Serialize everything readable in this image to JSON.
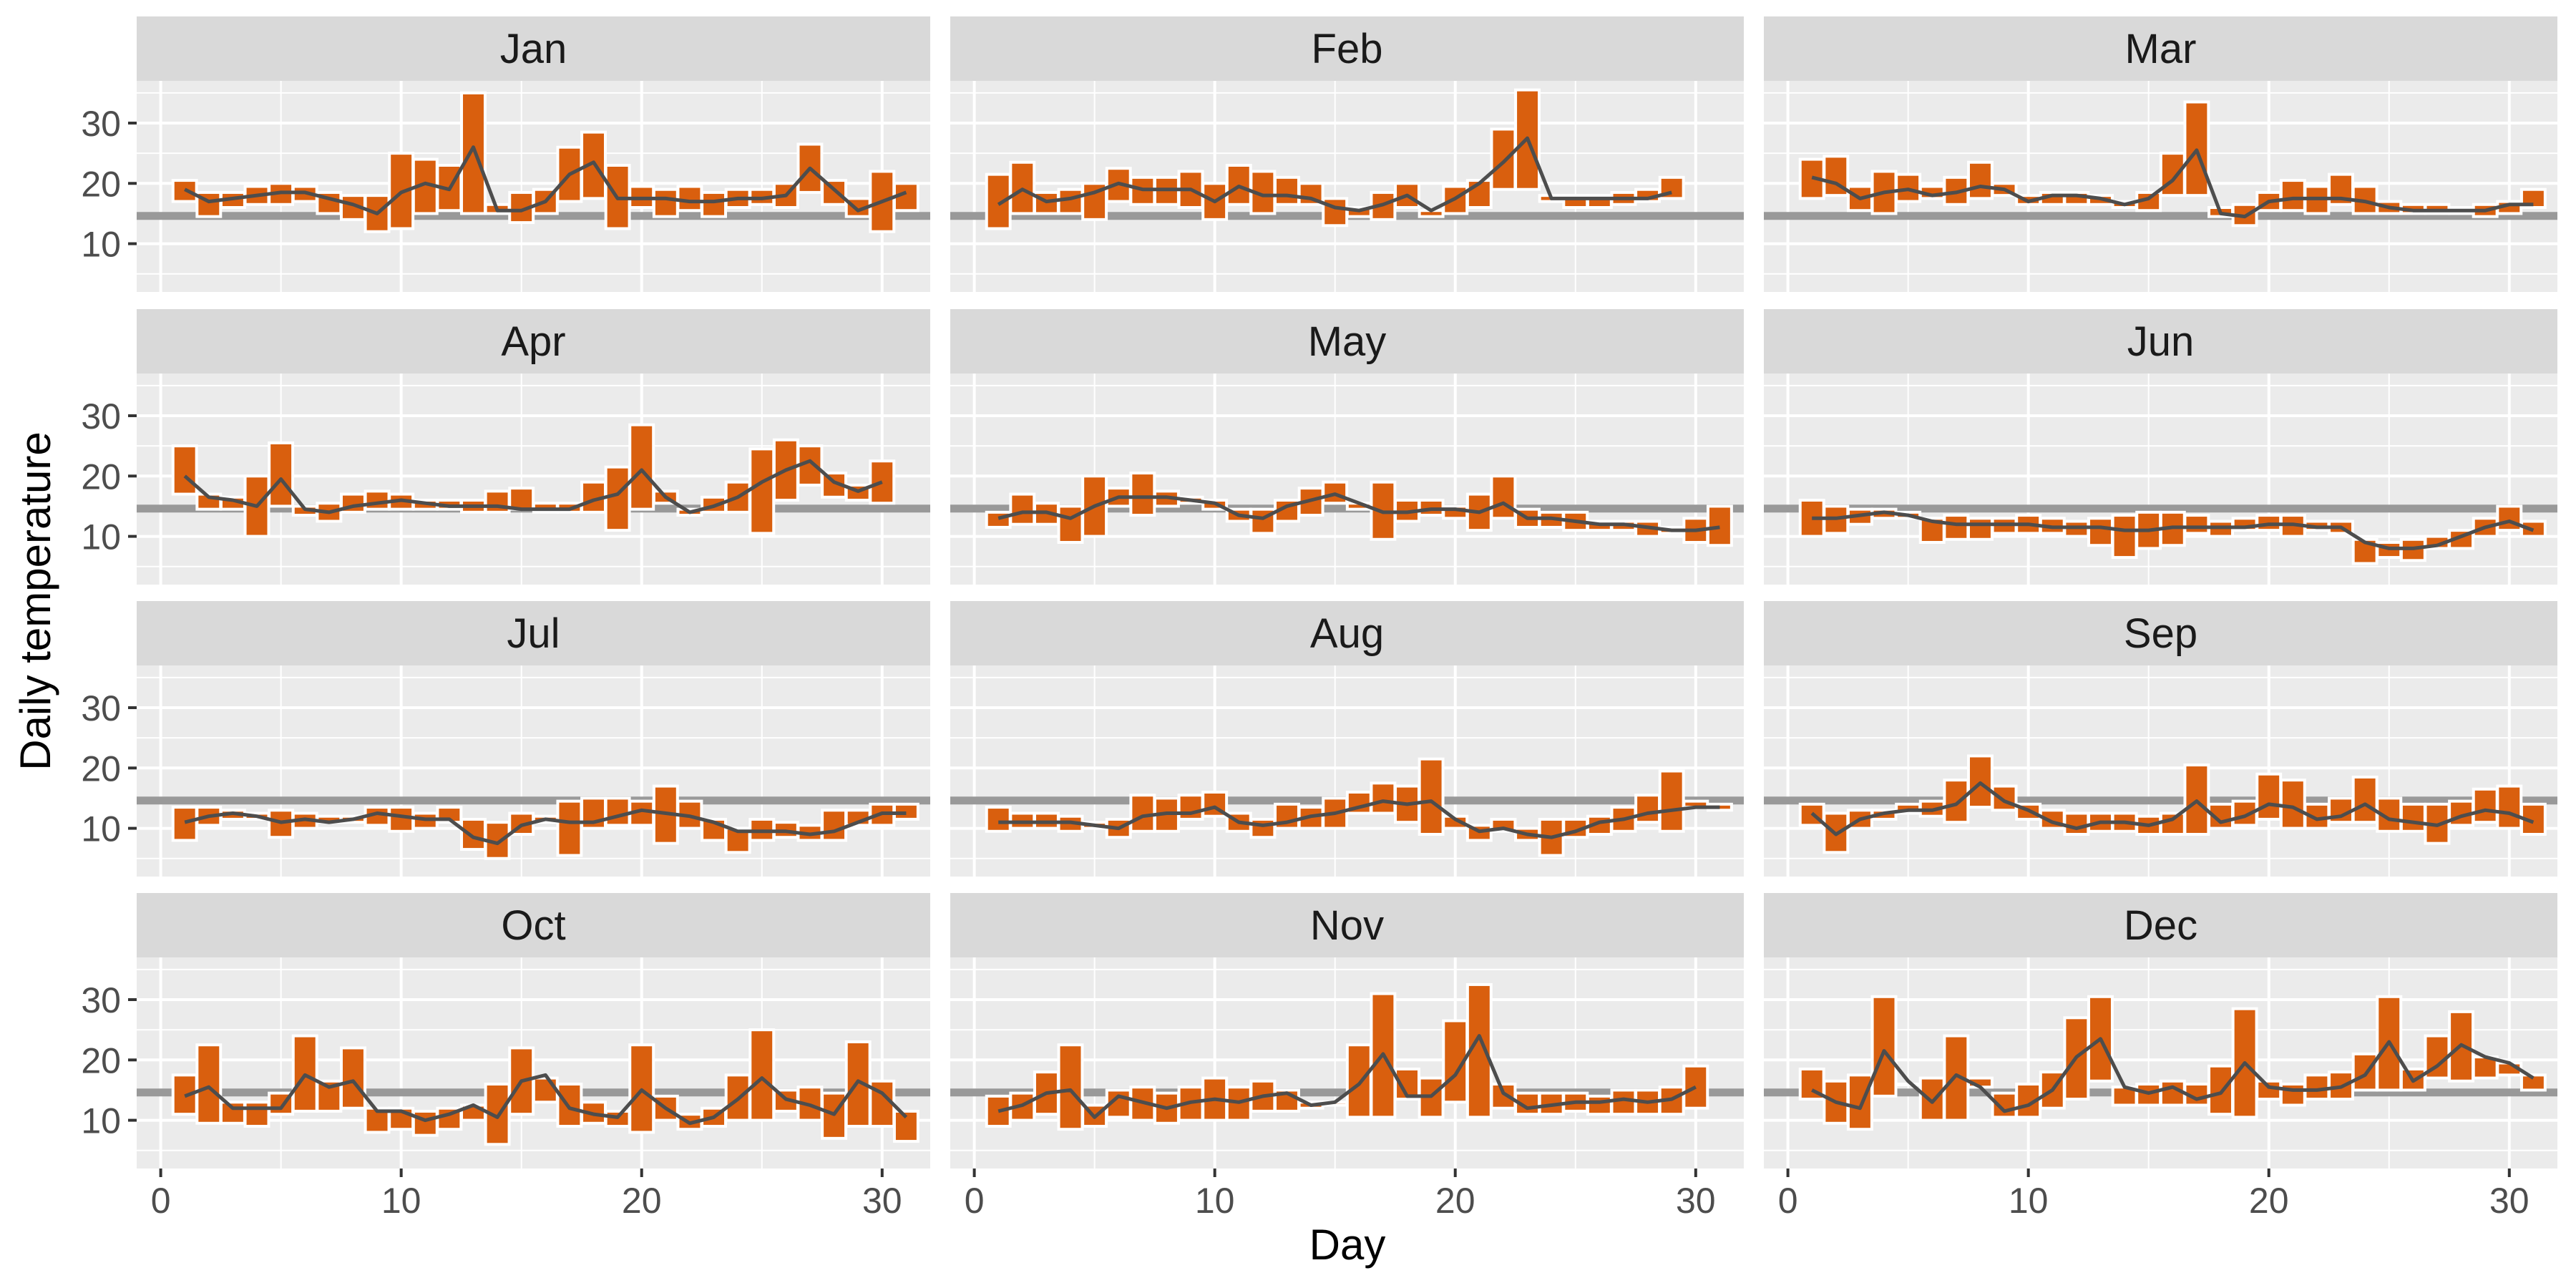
{
  "chart_data": {
    "type": "bar",
    "subtype": "floating-bar-with-line, faceted small multiples",
    "xlabel": "Day",
    "ylabel": "Daily temperature",
    "xlim": [
      -1,
      32
    ],
    "ylim": [
      2,
      37
    ],
    "x_ticks": [
      0,
      10,
      20,
      30
    ],
    "y_ticks": [
      10,
      20,
      30
    ],
    "grid": true,
    "reference_line_value": 14.6,
    "colors": {
      "bar": "#D95F0E",
      "bar_outline": "#ffffff",
      "line": "#4D4D4D",
      "reference_line": "#999999",
      "panel_background": "#EBEBEB",
      "strip_background": "#D9D9D9",
      "grid": "#ffffff"
    },
    "panels": [
      {
        "label": "Jan",
        "line": [
          19,
          17,
          17.5,
          18,
          18.5,
          18.5,
          17.5,
          16.5,
          15,
          18.5,
          20,
          19,
          26,
          15.5,
          15.5,
          17,
          21.5,
          23.5,
          17.5,
          17.5,
          17.5,
          17,
          17,
          17.5,
          17.5,
          18,
          22.5,
          19,
          15.5,
          17,
          18.5
        ],
        "low": [
          17,
          14.5,
          16,
          16.5,
          16.5,
          17,
          15,
          14,
          12,
          12.5,
          15,
          15.5,
          15,
          15,
          13.5,
          15,
          17,
          17.5,
          12.5,
          16,
          14.5,
          15.5,
          14.5,
          16,
          16.5,
          16,
          18.5,
          16.5,
          14.5,
          12,
          15.5
        ],
        "high": [
          20.5,
          18.5,
          18.5,
          19.5,
          20,
          19.5,
          18.5,
          18,
          18,
          25,
          24,
          23,
          35,
          16.5,
          18.5,
          19,
          26,
          28.5,
          23,
          19.5,
          19,
          19.5,
          18.5,
          19,
          19,
          20,
          26.5,
          20.5,
          17.5,
          22,
          20
        ]
      },
      {
        "label": "Feb",
        "line": [
          16.5,
          19,
          17,
          17.5,
          18.5,
          20,
          19,
          19,
          19,
          17,
          19.5,
          18,
          18,
          17.5,
          16,
          15.5,
          16.5,
          18,
          15.5,
          17.5,
          20,
          23.5,
          27.5,
          17.5,
          17.5,
          17.5,
          17.5,
          17.5,
          18.5
        ],
        "low": [
          12.5,
          15,
          15,
          15,
          14,
          17,
          16.5,
          16.5,
          16,
          14,
          16.5,
          15,
          16.5,
          16.5,
          13,
          14.5,
          14,
          16,
          14.5,
          15,
          16,
          19,
          19,
          17,
          16,
          16,
          16.5,
          17,
          17.5
        ],
        "high": [
          21.5,
          23.5,
          18.5,
          19,
          20,
          22.5,
          21,
          21,
          22,
          20,
          23,
          22,
          21,
          20,
          17.5,
          16,
          18.5,
          20,
          15.5,
          19.5,
          20.5,
          29,
          35.5,
          18,
          18,
          18,
          18.5,
          19,
          21
        ]
      },
      {
        "label": "Mar",
        "line": [
          21,
          20,
          17.5,
          18.5,
          19,
          18,
          18.5,
          19.5,
          19,
          17,
          18,
          18,
          17.5,
          16.5,
          17.5,
          20.5,
          25.5,
          15,
          14.5,
          17,
          17.5,
          17.5,
          17.5,
          17,
          16,
          15.5,
          15.5,
          15.5,
          15.5,
          16.5,
          16.5
        ],
        "low": [
          17.5,
          18,
          15.5,
          15,
          17,
          17.5,
          16.5,
          17.5,
          18,
          16.5,
          16.5,
          16.5,
          16.5,
          16,
          15.5,
          18,
          18,
          14.5,
          13,
          15.5,
          15.5,
          15,
          16.5,
          15,
          15,
          15,
          15,
          15,
          14.5,
          15,
          16
        ],
        "high": [
          24,
          24.5,
          19.5,
          22,
          21.5,
          19.5,
          21,
          23.5,
          20,
          18,
          18.5,
          18.5,
          18,
          17,
          18.5,
          25,
          33.5,
          16,
          16.5,
          18.5,
          20.5,
          19.5,
          21.5,
          19.5,
          17,
          16.5,
          16.5,
          16,
          16.5,
          17,
          19
        ]
      },
      {
        "label": "Apr",
        "line": [
          20,
          16.5,
          16,
          15,
          19.5,
          14.5,
          14,
          15,
          15.5,
          16,
          15.5,
          15,
          15,
          15,
          14.5,
          14.5,
          14.5,
          16,
          17,
          21,
          16.5,
          14,
          15,
          16.5,
          19,
          21,
          22.5,
          19,
          17.5,
          19
        ],
        "low": [
          17,
          14.5,
          14.5,
          10,
          15,
          13.5,
          12.5,
          14,
          14.5,
          14.5,
          14.5,
          14.5,
          14,
          14,
          14.5,
          14,
          14,
          14,
          11,
          14.5,
          15.5,
          13.5,
          14,
          14,
          10.5,
          16,
          18.5,
          16.5,
          16,
          15.5
        ],
        "high": [
          25,
          17,
          16.5,
          20,
          25.5,
          15,
          15.5,
          17,
          17.5,
          17,
          16,
          16,
          16,
          17.5,
          18,
          15.5,
          15.5,
          19,
          21.5,
          28.5,
          17.5,
          14.5,
          16.5,
          19,
          24.5,
          26,
          25,
          20.5,
          18.5,
          22.5
        ]
      },
      {
        "label": "May",
        "line": [
          13,
          14,
          14,
          13,
          15,
          16.5,
          16.5,
          16.5,
          16,
          15.5,
          13.5,
          13,
          15,
          16,
          17,
          15.5,
          14,
          14,
          14.5,
          14.5,
          14,
          15.5,
          13,
          13,
          12.5,
          12,
          12,
          11.5,
          11,
          11,
          11.5
        ],
        "low": [
          11.5,
          12,
          12,
          9,
          10,
          15,
          13.5,
          15,
          15.5,
          14.5,
          12.5,
          10.5,
          12.5,
          13.5,
          15.5,
          14.5,
          9.5,
          12.5,
          13.5,
          13,
          11,
          13,
          11.5,
          11.5,
          11,
          11,
          11,
          10,
          10.5,
          9,
          8.5
        ],
        "high": [
          14,
          17,
          15.5,
          15,
          20,
          18,
          20.5,
          17.5,
          16.5,
          16,
          14.5,
          14.5,
          16,
          18,
          19,
          15.5,
          19,
          16,
          16,
          15,
          17,
          20,
          14.5,
          14,
          14,
          12.5,
          12.5,
          12.5,
          11.5,
          13,
          15
        ]
      },
      {
        "label": "Jun",
        "line": [
          13,
          13,
          13.5,
          14,
          13.5,
          12.5,
          12,
          12,
          12,
          12,
          11.5,
          11.5,
          11.5,
          11,
          11,
          11.5,
          11.5,
          11.5,
          11.5,
          12,
          12,
          11.5,
          11.5,
          9,
          8,
          8,
          8.5,
          10,
          11.5,
          12.5,
          11
        ],
        "low": [
          10,
          10.5,
          12,
          13,
          13,
          9,
          9.5,
          9.5,
          10.5,
          10.5,
          10.5,
          10,
          8.5,
          6.5,
          8,
          8.5,
          10.5,
          10,
          11,
          11,
          10,
          11,
          10.5,
          5.5,
          6.5,
          6,
          8,
          8,
          10,
          11,
          10
        ],
        "high": [
          16,
          15,
          14.5,
          14.5,
          14,
          13,
          13.5,
          13,
          13,
          13.5,
          13,
          12.5,
          13,
          13.5,
          14,
          14,
          13.5,
          12.5,
          13,
          13.5,
          13.5,
          12.5,
          12.5,
          9.5,
          9,
          9.5,
          10,
          11,
          13,
          15,
          12.5
        ]
      },
      {
        "label": "Jul",
        "line": [
          11,
          12,
          12.5,
          12,
          11,
          11.5,
          11,
          11.5,
          12.5,
          12,
          11.5,
          11.5,
          8.5,
          7.5,
          10.5,
          11.5,
          11,
          11,
          12,
          13,
          12.5,
          12,
          11,
          9.5,
          9.5,
          9.5,
          9,
          9.5,
          11,
          12.5,
          12.5
        ],
        "low": [
          8,
          10.5,
          11.5,
          11.5,
          8.5,
          10,
          11,
          11,
          10.5,
          9.5,
          10,
          11,
          6.5,
          5,
          9,
          11,
          5.5,
          10,
          10.5,
          10.5,
          7.5,
          10,
          8,
          6,
          8,
          8.5,
          8,
          8,
          10.5,
          10.5,
          11.5
        ],
        "high": [
          13.5,
          13.5,
          13,
          12.5,
          13,
          12.5,
          12,
          12,
          13.5,
          13.5,
          12.5,
          13.5,
          11.5,
          11,
          12.5,
          12,
          14.5,
          15,
          15,
          14.5,
          17,
          14.5,
          11.5,
          10,
          11.5,
          11,
          10.5,
          13,
          13,
          14,
          14
        ]
      },
      {
        "label": "Aug",
        "line": [
          11,
          11,
          11,
          11,
          10.5,
          10,
          12,
          12.5,
          12.5,
          13.5,
          11,
          10.5,
          11,
          12,
          12.5,
          13.5,
          14.5,
          14,
          14.5,
          11.5,
          9.5,
          10,
          9,
          8.5,
          9.5,
          11,
          11.5,
          12.5,
          13,
          13.5,
          13.5
        ],
        "low": [
          9.5,
          10,
          10,
          9.5,
          10,
          8.5,
          9.5,
          9.5,
          11.5,
          12,
          9.5,
          8.5,
          10,
          10,
          10,
          12.5,
          12.5,
          11,
          9,
          10,
          8,
          9.5,
          8,
          5.5,
          8.5,
          9,
          9.5,
          11,
          9.5,
          13.5,
          13
        ],
        "high": [
          13.5,
          12.5,
          12.5,
          12,
          11,
          11.5,
          15.5,
          15,
          15.5,
          16,
          12.5,
          11.5,
          14,
          13.5,
          15,
          16,
          17.5,
          17,
          21.5,
          12,
          10.5,
          11.5,
          10,
          11.5,
          11.5,
          12,
          13.5,
          15.5,
          19.5,
          14.5,
          14
        ]
      },
      {
        "label": "Sep",
        "line": [
          12.5,
          9,
          11.5,
          12.5,
          13,
          13,
          14,
          17.5,
          14.5,
          13,
          11,
          10,
          11,
          11,
          10.5,
          11.5,
          14.5,
          11,
          12,
          14,
          13.5,
          11.5,
          12,
          14,
          11.5,
          11,
          10.5,
          12,
          13,
          12.5,
          11
        ],
        "low": [
          10.5,
          6,
          10,
          11.5,
          12.5,
          12,
          11,
          13.5,
          13,
          11.5,
          10,
          9,
          9.5,
          9.5,
          9,
          9,
          9,
          10,
          10.5,
          11.5,
          10,
          10,
          11,
          11,
          9.5,
          9.5,
          7.5,
          10.5,
          11,
          10,
          9
        ],
        "high": [
          14,
          12.5,
          13,
          13,
          14,
          14.5,
          18,
          22,
          17,
          14,
          13,
          12.5,
          12.5,
          12.5,
          12,
          12.5,
          20.5,
          14,
          14.5,
          19,
          18,
          14,
          15,
          18.5,
          15,
          14,
          14,
          14.5,
          16.5,
          17,
          14
        ]
      },
      {
        "label": "Oct",
        "line": [
          14,
          15.5,
          12,
          12,
          12,
          17.5,
          15.5,
          16.5,
          11.5,
          11.5,
          10,
          11,
          12.5,
          10.5,
          16.5,
          17.5,
          12,
          11,
          10.5,
          15,
          12,
          9.5,
          10.5,
          13.5,
          17,
          13.5,
          12.5,
          11,
          16.5,
          14.5,
          10.5
        ],
        "low": [
          11,
          9.5,
          9.5,
          9,
          11,
          11.5,
          11.5,
          12,
          8,
          8.5,
          7.5,
          8.5,
          10,
          6,
          11,
          13,
          9,
          9.5,
          9,
          8,
          10,
          8.5,
          9,
          10,
          10,
          11.5,
          10,
          7,
          9,
          9,
          6.5
        ],
        "high": [
          17.5,
          22.5,
          13,
          13,
          14.5,
          24,
          16.5,
          22,
          12,
          12,
          11.5,
          12,
          12.5,
          16,
          22,
          17,
          16,
          13,
          11.5,
          22.5,
          14,
          11,
          12,
          17.5,
          25,
          15,
          15.5,
          14.5,
          23,
          16.5,
          11.5
        ]
      },
      {
        "label": "Nov",
        "line": [
          11.5,
          12.5,
          14.5,
          15,
          10.5,
          14,
          13,
          12,
          13,
          13.5,
          13,
          14,
          14.5,
          12.5,
          13,
          16,
          21,
          14,
          14,
          17.5,
          24,
          14.5,
          12,
          12.5,
          13,
          13,
          13.5,
          13,
          13.5,
          15.5
        ],
        "low": [
          9,
          10,
          11,
          8.5,
          9,
          10.5,
          10,
          9.5,
          10,
          10,
          10,
          11.5,
          11.5,
          12,
          12.5,
          10.5,
          10.5,
          13.5,
          10.5,
          13,
          10.5,
          12,
          11,
          11,
          11.5,
          11,
          11,
          11,
          11,
          12
        ],
        "high": [
          14,
          14.5,
          18,
          22.5,
          12.5,
          15,
          15.5,
          14.5,
          15.5,
          17,
          15.5,
          16.5,
          15,
          13,
          13,
          22.5,
          31,
          18.5,
          17,
          26.5,
          32.5,
          16,
          14.5,
          14.5,
          14.5,
          14,
          15,
          15,
          15.5,
          19
        ]
      },
      {
        "label": "Dec",
        "line": [
          15,
          13,
          12,
          21.5,
          16.5,
          13,
          17.5,
          15.5,
          11.5,
          12.5,
          15,
          20.5,
          23.5,
          15.5,
          14.5,
          15.5,
          13.5,
          14.5,
          19.5,
          15.5,
          15,
          15,
          15.5,
          17.5,
          23,
          16.5,
          19,
          22.5,
          20.5,
          19.5,
          17
        ],
        "low": [
          13.5,
          9.5,
          8.5,
          14,
          16,
          10,
          10,
          15.5,
          10.5,
          10.5,
          12,
          13.5,
          16.5,
          12.5,
          12.5,
          12.5,
          12.5,
          11,
          10.5,
          13.5,
          12.5,
          13.5,
          13.5,
          15,
          15,
          15,
          17,
          16.5,
          17,
          17.5,
          15
        ],
        "high": [
          18.5,
          16.5,
          17.5,
          30.5,
          16,
          17,
          24,
          17,
          14.5,
          16,
          18,
          27,
          30.5,
          15.5,
          16,
          16.5,
          16,
          19,
          28.5,
          16.5,
          16,
          17.5,
          18,
          21,
          30.5,
          18.5,
          24,
          28,
          20.5,
          19.5,
          17.5
        ]
      }
    ]
  }
}
